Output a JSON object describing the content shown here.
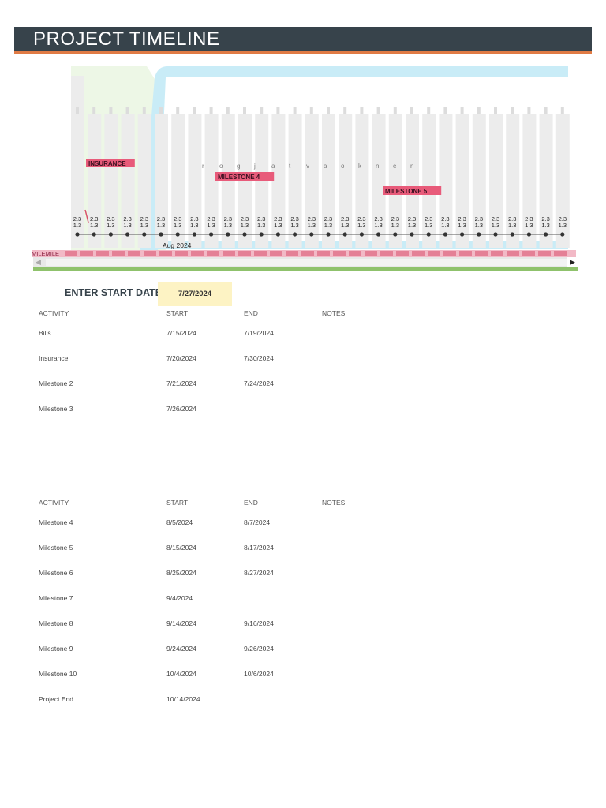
{
  "header": {
    "title": "PROJECT TIMELINE"
  },
  "timeline": {
    "month_label": "Aug 2024",
    "tick_label_top": "2.3",
    "tick_label_bottom": "1.3",
    "milestone_labels": [
      {
        "text": "INSURANCE",
        "level": "low"
      },
      {
        "text": "MILESTONE 4",
        "level": "mid"
      },
      {
        "text": "MILESTONE 5",
        "level": "high"
      }
    ],
    "scattered_glyphs": [
      "r",
      "o",
      "g",
      "j",
      "a",
      "t",
      "v",
      "a",
      "o",
      "k",
      "n",
      "e",
      "n"
    ],
    "strip_label": "MILEMILE",
    "colors": {
      "accent": "#e07b45",
      "marker": "#d94f6b",
      "label_bg": "#e85b7a",
      "band_blue": "#c9ecf7",
      "band_green": "#e6f4dc"
    }
  },
  "start_date": {
    "label": "ENTER START DATE:",
    "value": "7/27/2024"
  },
  "tables": [
    {
      "headers": {
        "activity": "ACTIVITY",
        "start": "START",
        "end": "END",
        "notes": "NOTES"
      },
      "rows": [
        {
          "activity": "Bills",
          "start": "7/15/2024",
          "end": "7/19/2024",
          "notes": ""
        },
        {
          "activity": "Insurance",
          "start": "7/20/2024",
          "end": "7/30/2024",
          "notes": ""
        },
        {
          "activity": "Milestone 2",
          "start": "7/21/2024",
          "end": "7/24/2024",
          "notes": ""
        },
        {
          "activity": "Milestone 3",
          "start": "7/26/2024",
          "end": "",
          "notes": ""
        }
      ]
    },
    {
      "headers": {
        "activity": "ACTIVITY",
        "start": "START",
        "end": "END",
        "notes": "NOTES"
      },
      "rows": [
        {
          "activity": "Milestone 4",
          "start": "8/5/2024",
          "end": "8/7/2024",
          "notes": ""
        },
        {
          "activity": "Milestone 5",
          "start": "8/15/2024",
          "end": "8/17/2024",
          "notes": ""
        },
        {
          "activity": "Milestone 6",
          "start": "8/25/2024",
          "end": "8/27/2024",
          "notes": ""
        },
        {
          "activity": "Milestone 7",
          "start": "9/4/2024",
          "end": "",
          "notes": ""
        },
        {
          "activity": "Milestone 8",
          "start": "9/14/2024",
          "end": "9/16/2024",
          "notes": ""
        },
        {
          "activity": "Milestone 9",
          "start": "9/24/2024",
          "end": "9/26/2024",
          "notes": ""
        },
        {
          "activity": "Milestone 10",
          "start": "10/4/2024",
          "end": "10/6/2024",
          "notes": ""
        },
        {
          "activity": "Project End",
          "start": "10/14/2024",
          "end": "",
          "notes": ""
        }
      ]
    }
  ]
}
